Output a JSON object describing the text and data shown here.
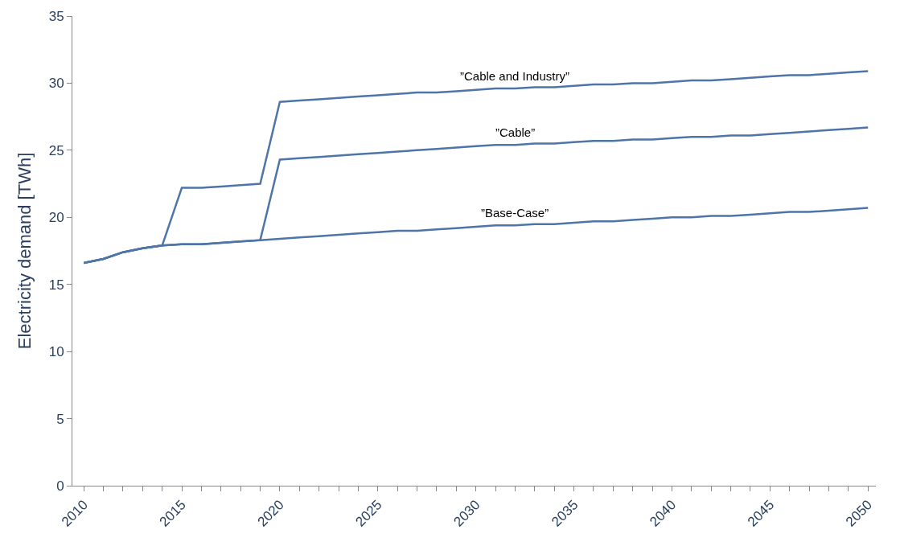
{
  "chart_data": {
    "type": "line",
    "ylabel": "Electricity demand [TWh]",
    "x": [
      2010,
      2011,
      2012,
      2013,
      2014,
      2015,
      2016,
      2017,
      2018,
      2019,
      2020,
      2021,
      2022,
      2023,
      2024,
      2025,
      2026,
      2027,
      2028,
      2029,
      2030,
      2031,
      2032,
      2033,
      2034,
      2035,
      2036,
      2037,
      2038,
      2039,
      2040,
      2041,
      2042,
      2043,
      2044,
      2045,
      2046,
      2047,
      2048,
      2049,
      2050
    ],
    "series": [
      {
        "name": "”Cable and Industry”",
        "color": "#4f74a8",
        "values": [
          16.6,
          16.9,
          17.4,
          17.7,
          17.9,
          22.2,
          22.2,
          22.3,
          22.4,
          22.5,
          28.6,
          28.7,
          28.8,
          28.9,
          29.0,
          29.1,
          29.2,
          29.3,
          29.3,
          29.4,
          29.5,
          29.6,
          29.6,
          29.7,
          29.7,
          29.8,
          29.9,
          29.9,
          30.0,
          30.0,
          30.1,
          30.2,
          30.2,
          30.3,
          30.4,
          30.5,
          30.6,
          30.6,
          30.7,
          30.8,
          30.9
        ]
      },
      {
        "name": "”Cable”",
        "color": "#4f74a8",
        "values": [
          16.6,
          16.9,
          17.4,
          17.7,
          17.9,
          18.0,
          18.0,
          18.1,
          18.2,
          18.3,
          24.3,
          24.4,
          24.5,
          24.6,
          24.7,
          24.8,
          24.9,
          25.0,
          25.1,
          25.2,
          25.3,
          25.4,
          25.4,
          25.5,
          25.5,
          25.6,
          25.7,
          25.7,
          25.8,
          25.8,
          25.9,
          26.0,
          26.0,
          26.1,
          26.1,
          26.2,
          26.3,
          26.4,
          26.5,
          26.6,
          26.7
        ]
      },
      {
        "name": "”Base-Case”",
        "color": "#4f74a8",
        "values": [
          16.6,
          16.9,
          17.4,
          17.7,
          17.9,
          18.0,
          18.0,
          18.1,
          18.2,
          18.3,
          18.4,
          18.5,
          18.6,
          18.7,
          18.8,
          18.9,
          19.0,
          19.0,
          19.1,
          19.2,
          19.3,
          19.4,
          19.4,
          19.5,
          19.5,
          19.6,
          19.7,
          19.7,
          19.8,
          19.9,
          20.0,
          20.0,
          20.1,
          20.1,
          20.2,
          20.3,
          20.4,
          20.4,
          20.5,
          20.6,
          20.7
        ]
      }
    ],
    "xlim": [
      2009.42,
      2050.4
    ],
    "xticks": [
      2010,
      {
        "value": 2011,
        "label": null
      },
      {
        "value": 2012,
        "label": null
      },
      {
        "value": 2013,
        "label": null
      },
      {
        "value": 2014,
        "label": null
      },
      2015,
      {
        "value": 2016,
        "label": null
      },
      {
        "value": 2017,
        "label": null
      },
      {
        "value": 2018,
        "label": null
      },
      {
        "value": 2019,
        "label": null
      },
      2020,
      {
        "value": 2021,
        "label": null
      },
      {
        "value": 2022,
        "label": null
      },
      {
        "value": 2023,
        "label": null
      },
      {
        "value": 2024,
        "label": null
      },
      2025,
      {
        "value": 2026,
        "label": null
      },
      {
        "value": 2027,
        "label": null
      },
      {
        "value": 2028,
        "label": null
      },
      {
        "value": 2029,
        "label": null
      },
      2030,
      {
        "value": 2031,
        "label": null
      },
      {
        "value": 2032,
        "label": null
      },
      {
        "value": 2033,
        "label": null
      },
      {
        "value": 2034,
        "label": null
      },
      2035,
      {
        "value": 2036,
        "label": null
      },
      {
        "value": 2037,
        "label": null
      },
      {
        "value": 2038,
        "label": null
      },
      {
        "value": 2039,
        "label": null
      },
      2040,
      {
        "value": 2041,
        "label": null
      },
      {
        "value": 2042,
        "label": null
      },
      {
        "value": 2043,
        "label": null
      },
      {
        "value": 2044,
        "label": null
      },
      2045,
      {
        "value": 2046,
        "label": null
      },
      {
        "value": 2047,
        "label": null
      },
      {
        "value": 2048,
        "label": null
      },
      {
        "value": 2049,
        "label": null
      },
      2050
    ],
    "ylim": [
      0,
      35
    ],
    "yticks": [
      0,
      5,
      10,
      15,
      20,
      25,
      30,
      35
    ],
    "legend": false,
    "marker": "none",
    "line_style": "solid"
  }
}
